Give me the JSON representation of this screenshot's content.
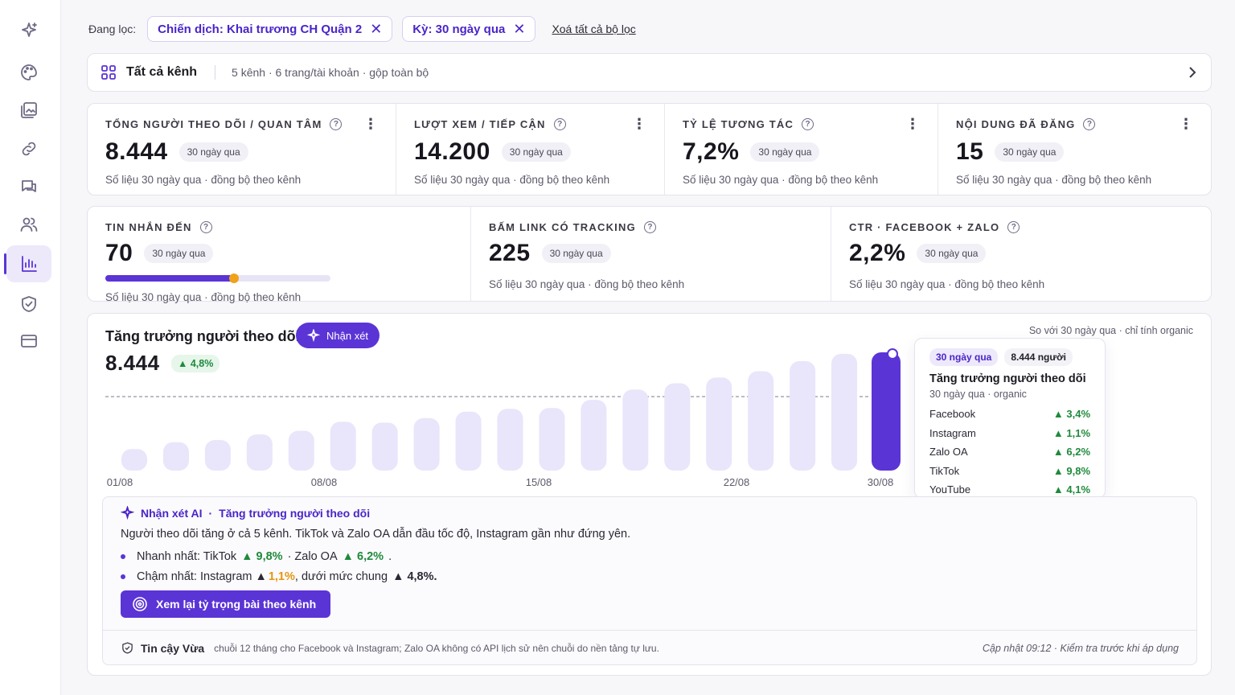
{
  "sidebar": {
    "items": [
      {
        "icon": "sparkles-icon"
      },
      {
        "icon": "palette-icon"
      },
      {
        "icon": "gallery-icon"
      },
      {
        "icon": "link-icon"
      },
      {
        "icon": "chat-icon"
      },
      {
        "icon": "users-icon"
      },
      {
        "icon": "bar-chart-icon",
        "active": true
      },
      {
        "icon": "shield-check-icon"
      },
      {
        "icon": "card-icon"
      }
    ]
  },
  "filters": {
    "label": "Đang lọc:",
    "chips": [
      "Chiến dịch: Khai trương CH Quận 2",
      "Kỳ: 30 ngày qua"
    ],
    "clear": "Xoá tất cả bộ lọc"
  },
  "channel": {
    "title": "Tất cả kênh",
    "meta": "5 kênh · 6 trang/tài khoản · gộp toàn bộ"
  },
  "kpis_row1": [
    {
      "label": "Tổng người theo dõi / quan tâm",
      "value": "8.444",
      "period": "30 ngày qua",
      "sub": "Số liệu 30 ngày qua · đồng bộ theo kênh"
    },
    {
      "label": "Lượt xem / tiếp cận",
      "value": "14.200",
      "period": "30 ngày qua",
      "sub": "Số liệu 30 ngày qua · đồng bộ theo kênh"
    },
    {
      "label": "Tỷ lệ tương tác",
      "value": "7,2%",
      "period": "30 ngày qua",
      "sub": "Số liệu 30 ngày qua · đồng bộ theo kênh"
    },
    {
      "label": "Nội dung đã đăng",
      "value": "15",
      "period": "30 ngày qua",
      "sub": "Số liệu 30 ngày qua · đồng bộ theo kênh"
    }
  ],
  "kpis_row2": [
    {
      "label": "Tin nhắn đến",
      "value": "70",
      "period": "30 ngày qua",
      "sub": "Số liệu 30 ngày qua · đồng bộ theo kênh",
      "progress": 0.57
    },
    {
      "label": "Bấm link có tracking",
      "value": "225",
      "period": "30 ngày qua",
      "sub": "Số liệu 30 ngày qua · đồng bộ theo kênh"
    },
    {
      "label": "CTR · Facebook + Zalo",
      "value": "2,2%",
      "period": "30 ngày qua",
      "sub": "Số liệu 30 ngày qua · đồng bộ theo kênh"
    }
  ],
  "chart": {
    "title": "Tăng trưởng người theo dõi",
    "ai_button": "Nhận xét",
    "compare_note": "So với 30 ngày qua · chỉ tính organic",
    "value": "8.444",
    "delta": "▲ 4,8%"
  },
  "chart_data": {
    "type": "bar",
    "title": "Tăng trưởng người theo dõi",
    "tick_labels": [
      "01/08",
      "08/08",
      "15/08",
      "22/08",
      "30/08"
    ],
    "values": [
      1.0,
      1.32,
      1.42,
      1.68,
      1.85,
      2.27,
      2.23,
      2.44,
      2.74,
      2.87,
      2.91,
      3.29,
      3.77,
      4.06,
      4.33,
      4.62,
      5.09,
      5.43,
      5.5
    ],
    "highlight_index": 18,
    "average_line": 3.44,
    "units": "relative height (unlabeled y-axis)"
  },
  "tooltip": {
    "period": "30 ngày qua",
    "count": "8.444 người",
    "title": "Tăng trưởng người theo dõi",
    "sub": "30 ngày qua · organic",
    "rows": [
      {
        "name": "Facebook",
        "value": "▲ 3,4%"
      },
      {
        "name": "Instagram",
        "value": "▲ 1,1%"
      },
      {
        "name": "Zalo OA",
        "value": "▲ 6,2%"
      },
      {
        "name": "TikTok",
        "value": "▲ 9,8%"
      },
      {
        "name": "YouTube",
        "value": "▲ 4,1%"
      }
    ]
  },
  "ai_panel": {
    "head_a": "Nhận xét AI",
    "head_b": "Tăng trưởng người theo dõi",
    "summary": "Người theo dõi tăng ở cả 5 kênh. TikTok và Zalo OA dẫn đầu tốc độ, Instagram gần như đứng yên.",
    "fast_prefix": "Nhanh nhất: TikTok",
    "fast_value1": "▲ 9,8%",
    "fast_mid": " · Zalo OA",
    "fast_value2": "▲ 6,2%",
    "slow_prefix": "Chậm nhất: Instagram ▲",
    "slow_value": "1,1%",
    "slow_mid": ", dưới mức chung",
    "slow_value2": "▲ 4,8%.",
    "cta": "Xem lại tỷ trọng bài theo kênh",
    "trust_label": "Tin cậy Vừa",
    "trust_note": "chuỗi 12 tháng cho Facebook và Instagram; Zalo OA không có API lịch sử nên chuỗi do nền tảng tự lưu.",
    "update_note": "Cập nhật 09:12 · Kiểm tra trước khi áp dụng"
  },
  "colors": {
    "accent": "#5b34d6",
    "bar_light": "#e9e5fb",
    "positive": "#1f8a3b",
    "warning": "#e5960e"
  }
}
